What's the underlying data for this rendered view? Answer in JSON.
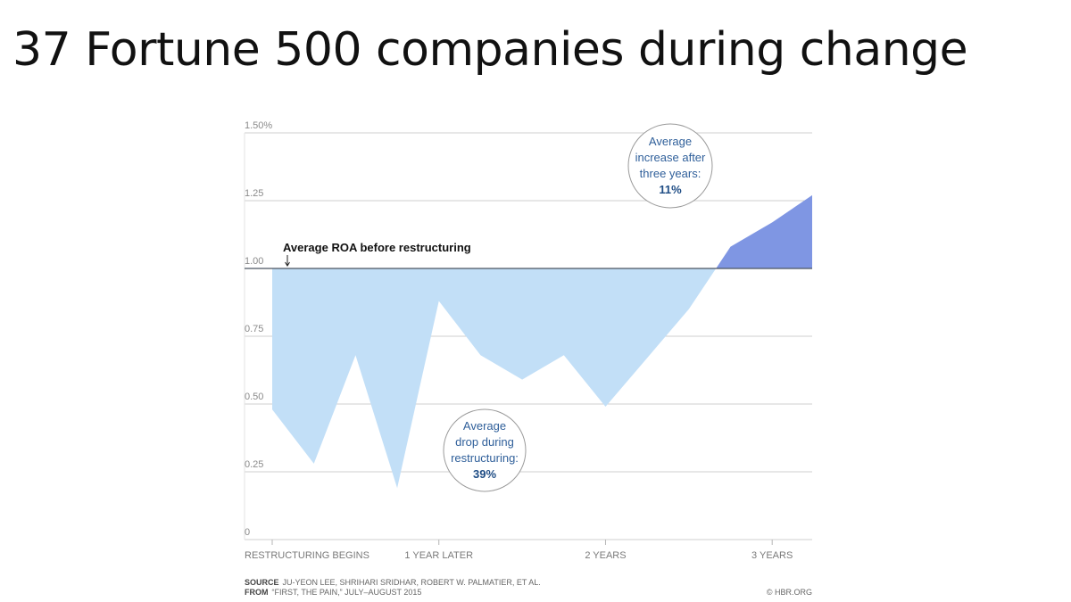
{
  "slide_title": "37 Fortune 500 companies during change",
  "chart_data": {
    "type": "area",
    "title": "",
    "xlabel": "",
    "ylabel": "",
    "ylim": [
      0,
      1.5
    ],
    "grid": true,
    "yticks": [
      {
        "value": 1.5,
        "label": "1.50%"
      },
      {
        "value": 1.25,
        "label": "1.25"
      },
      {
        "value": 1.0,
        "label": "1.00"
      },
      {
        "value": 0.75,
        "label": "0.75"
      },
      {
        "value": 0.5,
        "label": "0.50"
      },
      {
        "value": 0.25,
        "label": "0.25"
      },
      {
        "value": 0,
        "label": "0"
      }
    ],
    "xticks": [
      {
        "value": 0,
        "label": "RESTRUCTURING BEGINS"
      },
      {
        "value": 1,
        "label": "1 YEAR LATER"
      },
      {
        "value": 2,
        "label": "2 YEARS"
      },
      {
        "value": 3,
        "label": "3 YEARS"
      }
    ],
    "xlim": [
      0,
      3.24
    ],
    "baseline": 1.0,
    "series": [
      {
        "points": [
          {
            "x": 0,
            "y": 0.48
          },
          {
            "x": 0.25,
            "y": 0.28
          },
          {
            "x": 0.5,
            "y": 0.68
          },
          {
            "x": 0.75,
            "y": 0.19
          },
          {
            "x": 1.0,
            "y": 0.88
          },
          {
            "x": 1.25,
            "y": 0.68
          },
          {
            "x": 1.5,
            "y": 0.59
          },
          {
            "x": 1.75,
            "y": 0.68
          },
          {
            "x": 2.0,
            "y": 0.49
          },
          {
            "x": 2.25,
            "y": 0.67
          },
          {
            "x": 2.5,
            "y": 0.85
          },
          {
            "x": 2.75,
            "y": 1.08
          },
          {
            "x": 3.0,
            "y": 1.17
          },
          {
            "x": 3.24,
            "y": 1.27
          }
        ]
      }
    ],
    "colors": {
      "below": "#c2dff7",
      "above": "#7f96e3",
      "baseline": "#4a5560",
      "grid": "#cfcfcf"
    },
    "annotations": {
      "baseline_label": "Average ROA before restructuring",
      "drop": {
        "lines": [
          "Average",
          "drop during",
          "restructuring:"
        ],
        "value": "39%"
      },
      "increase": {
        "lines": [
          "Average",
          "increase after",
          "three years:"
        ],
        "value": "11%"
      }
    },
    "source": {
      "source_label": "SOURCE",
      "source_text": "JU-YEON LEE, SHRIHARI SRIDHAR, ROBERT W. PALMATIER, ET AL.",
      "from_label": "FROM",
      "from_text": "“FIRST, THE PAIN,” JULY–AUGUST 2015",
      "credit": "© HBR.ORG"
    }
  }
}
